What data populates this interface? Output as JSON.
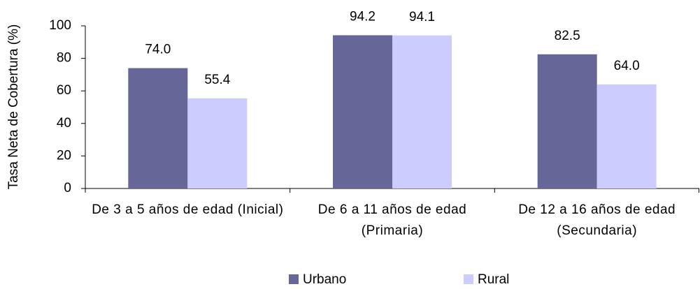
{
  "chart_data": {
    "type": "bar",
    "y_label": "Tasa Neta de Cobertura (%)",
    "categories": [
      "De 3 a 5 años de edad (Inicial)",
      "De 6 a 11 años de edad (Primaria)",
      "De 12 a 16 años de edad (Secundaria)"
    ],
    "series": [
      {
        "name": "Urbano",
        "color": "#666699",
        "values": [
          74.0,
          94.2,
          82.5
        ],
        "value_labels": [
          "74.0",
          "94.2",
          "82.5"
        ]
      },
      {
        "name": "Rural",
        "color": "#ccccff",
        "values": [
          55.4,
          94.1,
          64.0
        ],
        "value_labels": [
          "55.4",
          "94.1",
          "64.0"
        ]
      }
    ],
    "ylim": [
      0,
      100
    ],
    "yticks": [
      0,
      20,
      40,
      60,
      80,
      100
    ],
    "grid": false
  }
}
